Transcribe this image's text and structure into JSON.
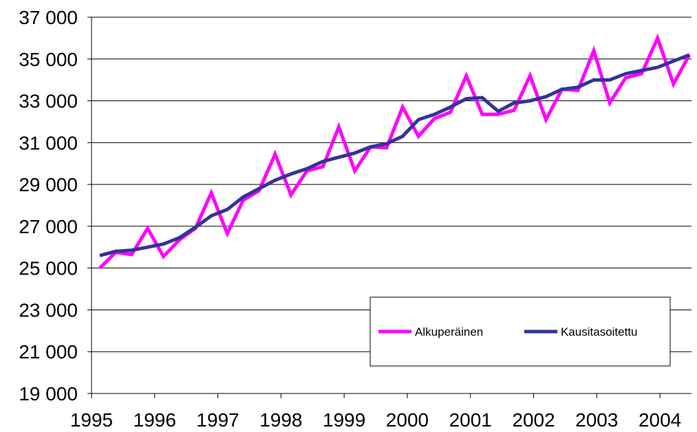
{
  "chart_data": {
    "type": "line",
    "title": "",
    "xlabel": "",
    "ylabel": "",
    "ylim": [
      19000,
      37000
    ],
    "y_ticks": [
      19000,
      21000,
      23000,
      25000,
      27000,
      29000,
      31000,
      33000,
      35000,
      37000
    ],
    "y_tick_labels": [
      "19 000",
      "21 000",
      "23 000",
      "25 000",
      "27 000",
      "29 000",
      "31 000",
      "33 000",
      "35 000",
      "37 000"
    ],
    "x_ticks": [
      1995,
      1996,
      1997,
      1998,
      1999,
      2000,
      2001,
      2002,
      2003,
      2004
    ],
    "x_tick_labels": [
      "1995",
      "1996",
      "1997",
      "1998",
      "1999",
      "2000",
      "2001",
      "2002",
      "2003",
      "2004"
    ],
    "grid": "horizontal",
    "legend_position": "bottom-right",
    "x": [
      "1995Q1",
      "1995Q2",
      "1995Q3",
      "1995Q4",
      "1996Q1",
      "1996Q2",
      "1996Q3",
      "1996Q4",
      "1997Q1",
      "1997Q2",
      "1997Q3",
      "1997Q4",
      "1998Q1",
      "1998Q2",
      "1998Q3",
      "1998Q4",
      "1999Q1",
      "1999Q2",
      "1999Q3",
      "1999Q4",
      "2000Q1",
      "2000Q2",
      "2000Q3",
      "2000Q4",
      "2001Q1",
      "2001Q2",
      "2001Q3",
      "2001Q4",
      "2002Q1",
      "2002Q2",
      "2002Q3",
      "2002Q4",
      "2003Q1",
      "2003Q2",
      "2003Q3",
      "2003Q4",
      "2004Q1",
      "2004Q2"
    ],
    "series": [
      {
        "name": "Alkuperäinen",
        "color": "#ff00ff",
        "values": [
          25000,
          25750,
          25650,
          26900,
          25550,
          26350,
          26900,
          28600,
          26650,
          28250,
          28700,
          30450,
          28500,
          29650,
          29850,
          31750,
          29650,
          30800,
          30750,
          32700,
          31300,
          32150,
          32450,
          34200,
          32350,
          32350,
          32550,
          34200,
          32100,
          33550,
          33500,
          35400,
          32900,
          34100,
          34300,
          36000,
          33800,
          35200
        ]
      },
      {
        "name": "Kausitasoitettu",
        "color": "#333399",
        "values": [
          25600,
          25800,
          25850,
          26000,
          26150,
          26450,
          26950,
          27500,
          27800,
          28400,
          28800,
          29200,
          29500,
          29750,
          30100,
          30300,
          30500,
          30800,
          30950,
          31300,
          32100,
          32350,
          32700,
          33100,
          33150,
          32500,
          32900,
          33000,
          33200,
          33550,
          33650,
          34000,
          34000,
          34300,
          34450,
          34600,
          34900,
          35200
        ]
      }
    ]
  }
}
